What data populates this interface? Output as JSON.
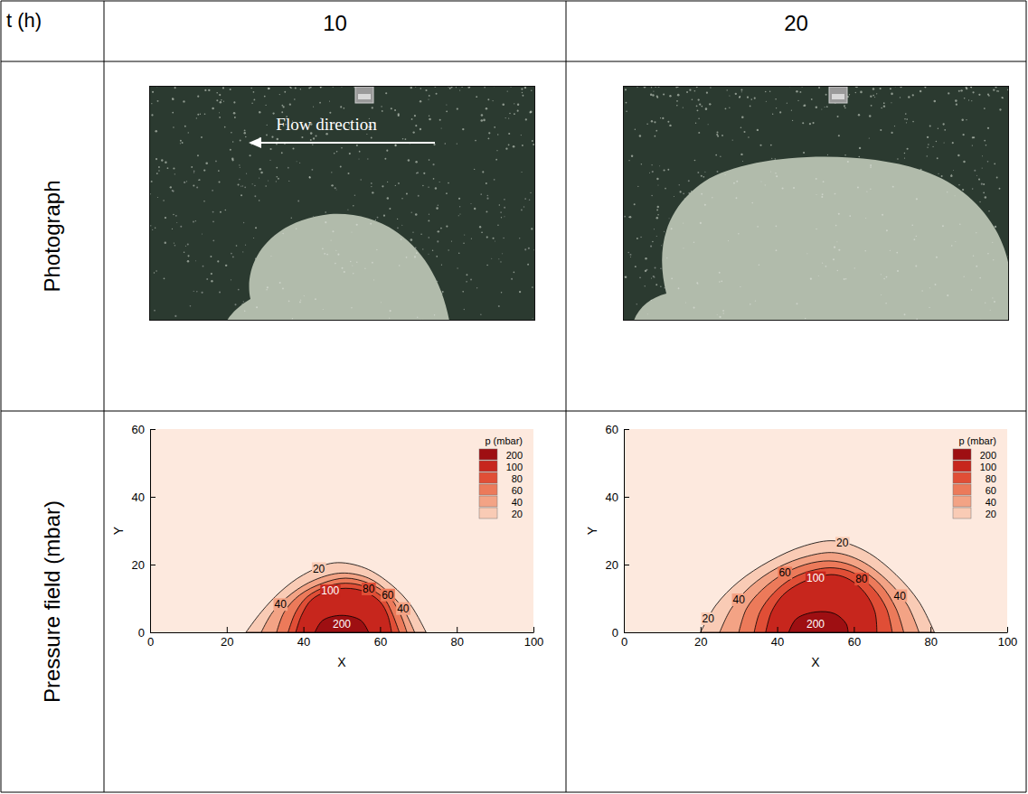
{
  "table": {
    "header": [
      "t (h)",
      "10",
      "20"
    ],
    "row_labels": [
      "Photograph",
      "Pressure field (mbar)"
    ],
    "annotation": "Flow direction"
  },
  "chart_data": [
    {
      "type": "contour",
      "legend_title": "p (mbar)",
      "x_label": "X",
      "y_label": "Y",
      "xlim": [
        0,
        100
      ],
      "xticks": [
        0,
        20,
        40,
        60,
        80,
        100
      ],
      "ylim": [
        0,
        60
      ],
      "yticks": [
        0,
        20,
        40,
        60
      ],
      "legend": "upper right",
      "series": [
        {
          "name": "20",
          "color": "#f9cbb5",
          "x": [
            25,
            29,
            34,
            40,
            48,
            56,
            63,
            68,
            72
          ],
          "y": [
            0,
            6,
            12,
            17,
            20.5,
            19,
            14,
            8,
            0
          ],
          "labels": {
            "x": [
              44
            ],
            "y": [
              18.8
            ]
          }
        },
        {
          "name": "40",
          "color": "#f3a385",
          "x": [
            29,
            32,
            37,
            43,
            50,
            57,
            62,
            66,
            69
          ],
          "y": [
            0,
            6,
            11.5,
            15.5,
            17.5,
            16,
            12,
            7,
            0
          ],
          "labels": {
            "x": [
              34,
              66
            ],
            "y": [
              8.2,
              7
            ]
          }
        },
        {
          "name": "60",
          "color": "#ec7a5a",
          "x": [
            33,
            35,
            39,
            45,
            51,
            57,
            62,
            65,
            67
          ],
          "y": [
            0,
            6,
            11,
            14.5,
            16,
            14.5,
            11,
            6,
            0
          ],
          "labels": {
            "x": [
              62
            ],
            "y": [
              11
            ]
          }
        },
        {
          "name": "80",
          "color": "#e04e36",
          "x": [
            36,
            38,
            41,
            46,
            51,
            56,
            61,
            63,
            65
          ],
          "y": [
            0,
            6,
            10.5,
            13.5,
            14.5,
            13.5,
            10,
            6,
            0
          ],
          "labels": {
            "x": [
              57
            ],
            "y": [
              12.8
            ]
          }
        },
        {
          "name": "100",
          "color": "#c7261d",
          "x": [
            38,
            39.5,
            42,
            46,
            51,
            56,
            60,
            62,
            63
          ],
          "y": [
            0,
            5,
            9.5,
            12,
            13,
            12,
            9,
            5,
            0
          ],
          "labels": {
            "x": [
              47
            ],
            "y": [
              12.2
            ]
          }
        },
        {
          "name": "200",
          "color": "#9e0f12",
          "x": [
            43,
            45,
            50,
            55,
            57
          ],
          "y": [
            0,
            3.5,
            5,
            3.5,
            0
          ],
          "labels": {
            "x": [
              50
            ],
            "y": [
              2.5
            ]
          }
        }
      ]
    },
    {
      "type": "contour",
      "legend_title": "p (mbar)",
      "x_label": "X",
      "y_label": "Y",
      "xlim": [
        0,
        100
      ],
      "xticks": [
        0,
        20,
        40,
        60,
        80,
        100
      ],
      "ylim": [
        0,
        60
      ],
      "yticks": [
        0,
        20,
        40,
        60
      ],
      "legend": "upper right",
      "series": [
        {
          "name": "20",
          "color": "#f9cbb5",
          "x": [
            20,
            24,
            30,
            38,
            47,
            55,
            63,
            71,
            77,
            81
          ],
          "y": [
            0,
            8,
            15,
            21,
            25.5,
            27,
            24,
            17,
            9,
            0
          ],
          "labels": {
            "x": [
              57,
              22
            ],
            "y": [
              26.3,
              4
            ]
          }
        },
        {
          "name": "40",
          "color": "#f3a385",
          "x": [
            25,
            28,
            33,
            40,
            48,
            55,
            62,
            69,
            74,
            77
          ],
          "y": [
            0,
            7,
            13.5,
            19,
            22.5,
            23.5,
            21,
            15,
            8,
            0
          ],
          "labels": {
            "x": [
              30,
              72
            ],
            "y": [
              9.6,
              10.8
            ]
          }
        },
        {
          "name": "60",
          "color": "#ec7a5a",
          "x": [
            30,
            32,
            36,
            42,
            49,
            55,
            61,
            67,
            71,
            73
          ],
          "y": [
            0,
            7,
            12.5,
            17.5,
            20.5,
            21,
            19,
            14,
            7,
            0
          ],
          "labels": {
            "x": [
              42
            ],
            "y": [
              17.5
            ]
          }
        },
        {
          "name": "80",
          "color": "#e04e36",
          "x": [
            34,
            35.5,
            39,
            44,
            50,
            55,
            60,
            65,
            68.5,
            70
          ],
          "y": [
            0,
            6,
            11.5,
            16,
            18.5,
            19,
            17.5,
            13,
            7,
            0
          ],
          "labels": {
            "x": [
              62
            ],
            "y": [
              15.7
            ]
          }
        },
        {
          "name": "100",
          "color": "#c7261d",
          "x": [
            37,
            38.5,
            41.5,
            46,
            51,
            55,
            59,
            63,
            65.5,
            66
          ],
          "y": [
            0,
            6,
            11,
            14.5,
            16.5,
            17,
            15.5,
            11.5,
            6,
            0
          ],
          "labels": {
            "x": [
              50
            ],
            "y": [
              16.1
            ]
          }
        },
        {
          "name": "200",
          "color": "#9e0f12",
          "x": [
            43,
            45,
            50,
            55,
            58,
            58.5
          ],
          "y": [
            0,
            4,
            6,
            5.5,
            2.5,
            0
          ],
          "labels": {
            "x": [
              50
            ],
            "y": [
              2.5
            ]
          }
        }
      ]
    }
  ]
}
